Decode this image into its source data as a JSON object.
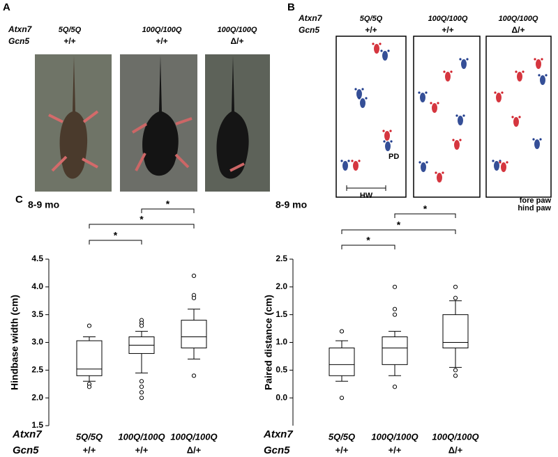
{
  "panels": {
    "a": "A",
    "b": "B",
    "c": "C"
  },
  "genotype_header": {
    "atxn7": "Atxn7",
    "gcn5": "Gcn5"
  },
  "panel_a": {
    "columns": [
      {
        "atxn7": "5Q/5Q",
        "gcn5": "+/+"
      },
      {
        "atxn7": "100Q/100Q",
        "gcn5": "+/+"
      },
      {
        "atxn7": "100Q/100Q",
        "gcn5": "Δ/+"
      }
    ]
  },
  "panel_b": {
    "columns": [
      {
        "atxn7": "5Q/5Q",
        "gcn5": "+/+"
      },
      {
        "atxn7": "100Q/100Q",
        "gcn5": "+/+"
      },
      {
        "atxn7": "100Q/100Q",
        "gcn5": "Δ/+"
      }
    ],
    "labels": {
      "pd": "PD",
      "hw": "HW"
    },
    "legend": {
      "fore": "fore paw",
      "hind": "hind paw"
    },
    "colors": {
      "fore": "#d0202a",
      "hind": "#1f3c8c"
    }
  },
  "chart_data": [
    {
      "type": "box",
      "title": "8-9 mo",
      "y_label": "Hindbase width (cm)",
      "row_labels": [
        "Atxn7",
        "Gcn5"
      ],
      "categories": [
        "5Q/5Q",
        "100Q/100Q",
        "100Q/100Q"
      ],
      "gcn5_genotypes": [
        "+/+",
        "+/+",
        "Δ/+"
      ],
      "boxes": [
        {
          "min": 2.3,
          "q1": 2.4,
          "median": 2.52,
          "q3": 3.03,
          "max": 3.1,
          "outliers": [
            3.3,
            2.25,
            2.2
          ]
        },
        {
          "min": 2.45,
          "q1": 2.8,
          "median": 2.95,
          "q3": 3.1,
          "max": 3.2,
          "outliers": [
            3.4,
            3.35,
            3.3,
            2.3,
            2.2,
            2.1,
            2.0
          ]
        },
        {
          "min": 2.7,
          "q1": 2.9,
          "median": 3.1,
          "q3": 3.4,
          "max": 3.6,
          "outliers": [
            4.2,
            3.85,
            3.8,
            2.4
          ]
        }
      ],
      "significance": [
        "*",
        "*",
        "*"
      ],
      "ylim": [
        1.5,
        4.5
      ],
      "yticks": [
        1.5,
        {
          "value": 2.0,
          "label": "2.0"
        },
        2.5,
        {
          "value": 3.0,
          "label": "3.0"
        },
        3.5,
        {
          "value": 4.0,
          "label": "4.0"
        },
        4.5
      ]
    },
    {
      "type": "box",
      "title": "8-9 mo",
      "y_label": "Paired distance (cm)",
      "row_labels": [
        "Atxn7",
        "Gcn5"
      ],
      "categories": [
        "5Q/5Q",
        "100Q/100Q",
        "100Q/100Q"
      ],
      "gcn5_genotypes": [
        "+/+",
        "+/+",
        "Δ/+"
      ],
      "boxes": [
        {
          "min": 0.3,
          "q1": 0.4,
          "median": 0.6,
          "q3": 0.9,
          "max": 1.03,
          "outliers": [
            1.2,
            0.0
          ]
        },
        {
          "min": 0.4,
          "q1": 0.6,
          "median": 0.9,
          "q3": 1.1,
          "max": 1.2,
          "outliers": [
            2.0,
            1.6,
            1.5,
            0.2
          ]
        },
        {
          "min": 0.55,
          "q1": 0.9,
          "median": 1.0,
          "q3": 1.5,
          "max": 1.75,
          "outliers": [
            2.0,
            1.8,
            0.5,
            0.4
          ]
        }
      ],
      "significance": [
        "*",
        "*",
        "*"
      ],
      "ylim": [
        -0.5,
        2.5
      ],
      "yticks": [
        {
          "value": 0.0,
          "label": "0.0"
        },
        0.5,
        {
          "value": 1.0,
          "label": "1.0"
        },
        1.5,
        {
          "value": 2.0,
          "label": "2.0"
        },
        2.5
      ]
    }
  ]
}
